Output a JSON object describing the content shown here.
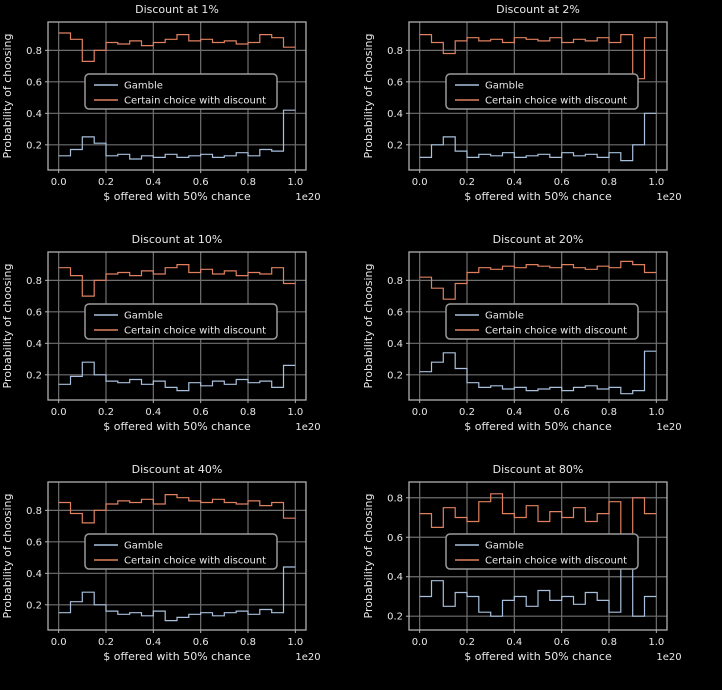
{
  "figure": {
    "background": "#000000",
    "text_color": "#e8e8e8",
    "grid_color": "#6f6f6f",
    "frame_color": "#b0b0b0",
    "gamble_color": "#a8c0dc",
    "certain_color": "#e0805f"
  },
  "chart_data": [
    {
      "type": "line",
      "title": "Discount at 1%",
      "xlabel": "$ offered with 50% chance",
      "ylabel": "Probability of choosing",
      "x_offset": "1e20",
      "xlim": [
        -0.045,
        1.045
      ],
      "ylim": [
        0.04,
        0.98
      ],
      "xticks": [
        0.0,
        0.2,
        0.4,
        0.6,
        0.8,
        1.0
      ],
      "yticks": [
        0.2,
        0.4,
        0.6,
        0.8
      ],
      "grid": true,
      "legend_position": "center-left",
      "series": [
        {
          "name": "Gamble",
          "color": "#a8c0dc",
          "values": [
            0.13,
            0.17,
            0.25,
            0.21,
            0.13,
            0.14,
            0.11,
            0.13,
            0.12,
            0.14,
            0.12,
            0.13,
            0.14,
            0.12,
            0.13,
            0.15,
            0.13,
            0.17,
            0.16,
            0.42
          ]
        },
        {
          "name": "Certain choice with discount",
          "color": "#e0805f",
          "values": [
            0.91,
            0.87,
            0.73,
            0.8,
            0.85,
            0.84,
            0.86,
            0.83,
            0.85,
            0.87,
            0.9,
            0.86,
            0.87,
            0.85,
            0.86,
            0.84,
            0.85,
            0.9,
            0.88,
            0.82
          ]
        }
      ]
    },
    {
      "type": "line",
      "title": "Discount at 2%",
      "xlabel": "$ offered with 50% chance",
      "ylabel": "Probability of choosing",
      "x_offset": "1e20",
      "xlim": [
        -0.045,
        1.045
      ],
      "ylim": [
        0.04,
        0.98
      ],
      "xticks": [
        0.0,
        0.2,
        0.4,
        0.6,
        0.8,
        1.0
      ],
      "yticks": [
        0.2,
        0.4,
        0.6,
        0.8
      ],
      "grid": true,
      "legend_position": "center-left",
      "series": [
        {
          "name": "Gamble",
          "color": "#a8c0dc",
          "values": [
            0.12,
            0.2,
            0.25,
            0.16,
            0.12,
            0.14,
            0.13,
            0.15,
            0.12,
            0.13,
            0.14,
            0.12,
            0.15,
            0.13,
            0.14,
            0.12,
            0.15,
            0.1,
            0.2,
            0.4
          ]
        },
        {
          "name": "Certain choice with discount",
          "color": "#e0805f",
          "values": [
            0.9,
            0.85,
            0.78,
            0.86,
            0.88,
            0.86,
            0.87,
            0.85,
            0.88,
            0.87,
            0.86,
            0.88,
            0.85,
            0.87,
            0.86,
            0.88,
            0.85,
            0.9,
            0.62,
            0.88
          ]
        }
      ]
    },
    {
      "type": "line",
      "title": "Discount at 10%",
      "xlabel": "$ offered with 50% chance",
      "ylabel": "Probability of choosing",
      "x_offset": "1e20",
      "xlim": [
        -0.045,
        1.045
      ],
      "ylim": [
        0.04,
        0.98
      ],
      "xticks": [
        0.0,
        0.2,
        0.4,
        0.6,
        0.8,
        1.0
      ],
      "yticks": [
        0.2,
        0.4,
        0.6,
        0.8
      ],
      "grid": true,
      "legend_position": "center-left",
      "series": [
        {
          "name": "Gamble",
          "color": "#a8c0dc",
          "values": [
            0.14,
            0.19,
            0.28,
            0.2,
            0.16,
            0.15,
            0.17,
            0.14,
            0.16,
            0.12,
            0.1,
            0.15,
            0.13,
            0.16,
            0.14,
            0.17,
            0.15,
            0.16,
            0.12,
            0.26
          ]
        },
        {
          "name": "Certain choice with discount",
          "color": "#e0805f",
          "values": [
            0.88,
            0.83,
            0.7,
            0.8,
            0.84,
            0.85,
            0.83,
            0.86,
            0.84,
            0.88,
            0.9,
            0.85,
            0.87,
            0.84,
            0.86,
            0.83,
            0.85,
            0.84,
            0.88,
            0.78
          ]
        }
      ]
    },
    {
      "type": "line",
      "title": "Discount at 20%",
      "xlabel": "$ offered with 50% chance",
      "ylabel": "Probability of choosing",
      "x_offset": "1e20",
      "xlim": [
        -0.045,
        1.045
      ],
      "ylim": [
        0.04,
        0.98
      ],
      "xticks": [
        0.0,
        0.2,
        0.4,
        0.6,
        0.8,
        1.0
      ],
      "yticks": [
        0.2,
        0.4,
        0.6,
        0.8
      ],
      "grid": true,
      "legend_position": "center-left",
      "series": [
        {
          "name": "Gamble",
          "color": "#a8c0dc",
          "values": [
            0.22,
            0.28,
            0.34,
            0.24,
            0.15,
            0.12,
            0.13,
            0.11,
            0.12,
            0.1,
            0.11,
            0.12,
            0.1,
            0.12,
            0.13,
            0.11,
            0.12,
            0.08,
            0.1,
            0.35
          ]
        },
        {
          "name": "Certain choice with discount",
          "color": "#e0805f",
          "values": [
            0.82,
            0.75,
            0.68,
            0.78,
            0.85,
            0.88,
            0.87,
            0.89,
            0.88,
            0.9,
            0.89,
            0.88,
            0.9,
            0.88,
            0.87,
            0.89,
            0.88,
            0.92,
            0.9,
            0.85
          ]
        }
      ]
    },
    {
      "type": "line",
      "title": "Discount at 40%",
      "xlabel": "$ offered with 50% chance",
      "ylabel": "Probability of choosing",
      "x_offset": "1e20",
      "xlim": [
        -0.045,
        1.045
      ],
      "ylim": [
        0.04,
        0.98
      ],
      "xticks": [
        0.0,
        0.2,
        0.4,
        0.6,
        0.8,
        1.0
      ],
      "yticks": [
        0.2,
        0.4,
        0.6,
        0.8
      ],
      "grid": true,
      "legend_position": "center-left",
      "series": [
        {
          "name": "Gamble",
          "color": "#a8c0dc",
          "values": [
            0.15,
            0.22,
            0.28,
            0.2,
            0.16,
            0.14,
            0.15,
            0.13,
            0.16,
            0.1,
            0.12,
            0.14,
            0.15,
            0.13,
            0.15,
            0.16,
            0.14,
            0.17,
            0.15,
            0.44
          ]
        },
        {
          "name": "Certain choice with discount",
          "color": "#e0805f",
          "values": [
            0.85,
            0.78,
            0.72,
            0.8,
            0.84,
            0.86,
            0.85,
            0.87,
            0.84,
            0.9,
            0.88,
            0.86,
            0.85,
            0.87,
            0.85,
            0.84,
            0.86,
            0.83,
            0.85,
            0.75
          ]
        }
      ]
    },
    {
      "type": "line",
      "title": "Discount at 80%",
      "xlabel": "$ offered with 50% chance",
      "ylabel": "Probability of choosing",
      "x_offset": "1e20",
      "xlim": [
        -0.045,
        1.045
      ],
      "ylim": [
        0.13,
        0.88
      ],
      "xticks": [
        0.0,
        0.2,
        0.4,
        0.6,
        0.8,
        1.0
      ],
      "yticks": [
        0.2,
        0.4,
        0.6,
        0.8
      ],
      "grid": true,
      "legend_position": "center-left",
      "series": [
        {
          "name": "Gamble",
          "color": "#a8c0dc",
          "values": [
            0.3,
            0.38,
            0.25,
            0.32,
            0.3,
            0.22,
            0.2,
            0.28,
            0.3,
            0.25,
            0.33,
            0.28,
            0.3,
            0.26,
            0.32,
            0.28,
            0.22,
            0.52,
            0.2,
            0.3
          ]
        },
        {
          "name": "Certain choice with discount",
          "color": "#e0805f",
          "values": [
            0.72,
            0.65,
            0.75,
            0.7,
            0.68,
            0.78,
            0.82,
            0.72,
            0.7,
            0.76,
            0.68,
            0.73,
            0.7,
            0.75,
            0.68,
            0.72,
            0.78,
            0.52,
            0.8,
            0.72
          ]
        }
      ]
    }
  ]
}
